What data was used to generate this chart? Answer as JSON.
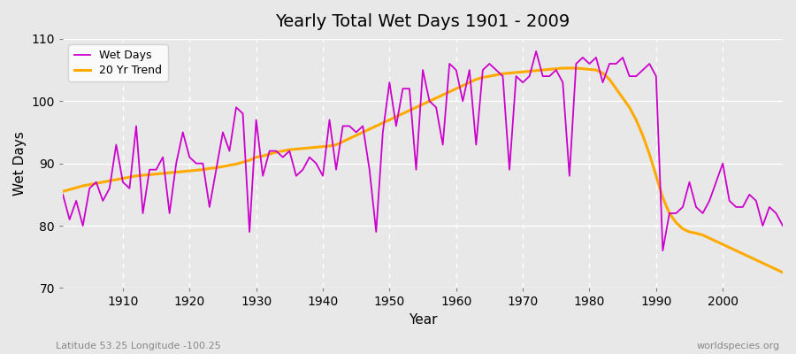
{
  "title": "Yearly Total Wet Days 1901 - 2009",
  "xlabel": "Year",
  "ylabel": "Wet Days",
  "xlim": [
    1901,
    2009
  ],
  "ylim": [
    70,
    110
  ],
  "yticks": [
    70,
    80,
    90,
    100,
    110
  ],
  "xticks": [
    1910,
    1920,
    1930,
    1940,
    1950,
    1960,
    1970,
    1980,
    1990,
    2000
  ],
  "bg_color": "#e8e8e8",
  "plot_bg_color": "#e8e8e8",
  "wet_days_color": "#cc00cc",
  "trend_color": "#ffaa00",
  "subtitle_left": "Latitude 53.25 Longitude -100.25",
  "subtitle_right": "worldspecies.org",
  "years": [
    1901,
    1902,
    1903,
    1904,
    1905,
    1906,
    1907,
    1908,
    1909,
    1910,
    1911,
    1912,
    1913,
    1914,
    1915,
    1916,
    1917,
    1918,
    1919,
    1920,
    1921,
    1922,
    1923,
    1924,
    1925,
    1926,
    1927,
    1928,
    1929,
    1930,
    1931,
    1932,
    1933,
    1934,
    1935,
    1936,
    1937,
    1938,
    1939,
    1940,
    1941,
    1942,
    1943,
    1944,
    1945,
    1946,
    1947,
    1948,
    1949,
    1950,
    1951,
    1952,
    1953,
    1954,
    1955,
    1956,
    1957,
    1958,
    1959,
    1960,
    1961,
    1962,
    1963,
    1964,
    1965,
    1966,
    1967,
    1968,
    1969,
    1970,
    1971,
    1972,
    1973,
    1974,
    1975,
    1976,
    1977,
    1978,
    1979,
    1980,
    1981,
    1982,
    1983,
    1984,
    1985,
    1986,
    1987,
    1988,
    1989,
    1990,
    1991,
    1992,
    1993,
    1994,
    1995,
    1996,
    1997,
    1998,
    1999,
    2000,
    2001,
    2002,
    2003,
    2004,
    2005,
    2006,
    2007,
    2008,
    2009
  ],
  "wet_days": [
    85,
    81,
    84,
    80,
    86,
    87,
    84,
    86,
    93,
    87,
    86,
    96,
    82,
    89,
    89,
    91,
    82,
    90,
    95,
    91,
    90,
    90,
    83,
    89,
    95,
    92,
    99,
    98,
    79,
    97,
    88,
    92,
    92,
    91,
    92,
    88,
    89,
    91,
    90,
    88,
    97,
    89,
    96,
    96,
    95,
    96,
    89,
    79,
    95,
    103,
    96,
    102,
    102,
    89,
    105,
    100,
    99,
    93,
    106,
    105,
    100,
    105,
    93,
    105,
    106,
    105,
    104,
    89,
    104,
    103,
    104,
    108,
    104,
    104,
    105,
    103,
    88,
    106,
    107,
    106,
    107,
    103,
    106,
    106,
    107,
    104,
    104,
    105,
    106,
    104,
    76,
    82,
    82,
    83,
    87,
    83,
    82,
    84,
    87,
    90,
    84,
    83,
    83,
    85,
    84,
    80,
    83,
    82,
    80
  ],
  "trend": [
    85.5,
    85.8,
    86.1,
    86.4,
    86.6,
    86.8,
    87.0,
    87.2,
    87.4,
    87.6,
    87.8,
    88.0,
    88.1,
    88.2,
    88.3,
    88.4,
    88.5,
    88.6,
    88.7,
    88.8,
    88.9,
    89.0,
    89.2,
    89.3,
    89.5,
    89.7,
    89.9,
    90.2,
    90.5,
    91.0,
    91.2,
    91.5,
    91.8,
    92.0,
    92.2,
    92.3,
    92.4,
    92.5,
    92.6,
    92.7,
    92.8,
    93.0,
    93.5,
    94.0,
    94.5,
    95.0,
    95.5,
    96.0,
    96.5,
    97.0,
    97.5,
    98.0,
    98.5,
    99.0,
    99.5,
    100.0,
    100.5,
    101.0,
    101.5,
    102.0,
    102.5,
    103.0,
    103.5,
    103.8,
    104.0,
    104.2,
    104.4,
    104.5,
    104.6,
    104.7,
    104.8,
    104.9,
    105.0,
    105.1,
    105.2,
    105.3,
    105.3,
    105.3,
    105.2,
    105.1,
    105.0,
    104.5,
    103.5,
    102.0,
    100.5,
    99.0,
    97.0,
    94.5,
    91.5,
    88.0,
    84.5,
    82.0,
    80.5,
    79.5,
    79.0,
    78.8,
    78.5,
    78.0,
    77.5,
    77.0,
    76.5,
    76.0,
    75.5,
    75.0,
    74.5,
    74.0,
    73.5,
    73.0,
    72.5
  ]
}
